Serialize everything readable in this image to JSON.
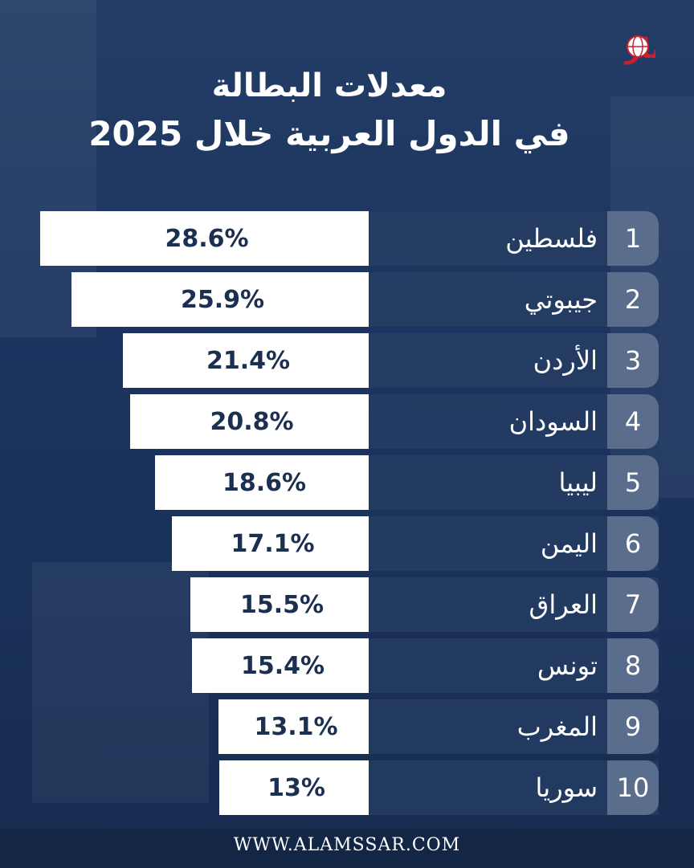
{
  "brand": {
    "logo_text": "الأمصار"
  },
  "title": {
    "line1": "معدلات البطالة",
    "line2": "في الدول العربية خلال 2025"
  },
  "chart_data": {
    "type": "bar",
    "orientation": "horizontal",
    "ranks": [
      "1",
      "2",
      "3",
      "4",
      "5",
      "6",
      "7",
      "8",
      "9",
      "10"
    ],
    "categories": [
      "فلسطين",
      "جيبوتي",
      "الأردن",
      "السودان",
      "ليبيا",
      "اليمن",
      "العراق",
      "تونس",
      "المغرب",
      "سوريا"
    ],
    "values": [
      28.6,
      25.9,
      21.4,
      20.8,
      18.6,
      17.1,
      15.5,
      15.4,
      13.1,
      13
    ],
    "value_labels": [
      "28.6%",
      "25.9%",
      "21.4%",
      "20.8%",
      "18.6%",
      "17.1%",
      "15.5%",
      "15.4%",
      "13.1%",
      "13%"
    ],
    "unit": "%",
    "bar_color": "#ffffff",
    "label_color": "#1b2f50"
  },
  "footer": {
    "website": "WWW.ALAMSSAR.COM"
  },
  "colors": {
    "background": "#1c3560",
    "rank_box": "#5b6d8c",
    "accent": "#c8202f"
  }
}
